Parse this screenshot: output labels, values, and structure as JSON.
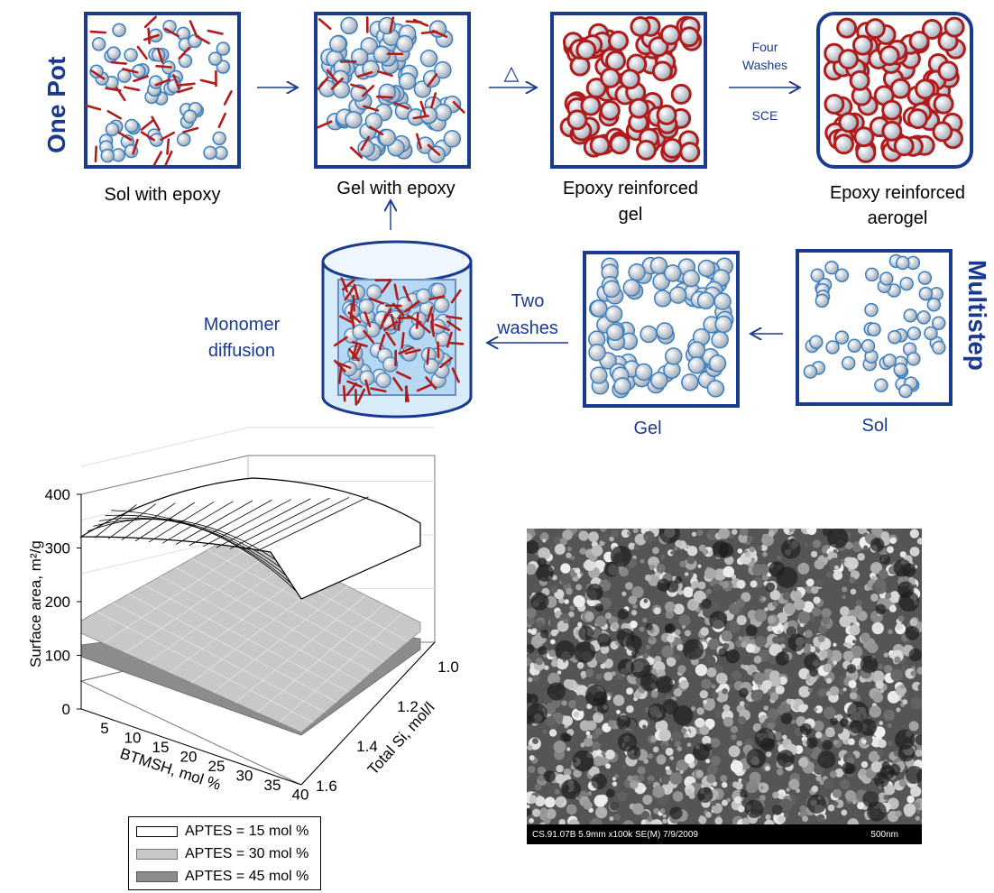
{
  "diagram": {
    "one_pot_label": "One Pot",
    "multistep_label": "Multistep",
    "sol_with_epoxy": "Sol with epoxy",
    "gel_with_epoxy": "Gel with epoxy",
    "epoxy_gel_line1": "Epoxy reinforced",
    "epoxy_gel_line2": "gel",
    "epoxy_aerogel_line1": "Epoxy reinforced",
    "epoxy_aerogel_line2": "aerogel",
    "four_line1": "Four",
    "four_line2": "Washes",
    "sce": "SCE",
    "heat_symbol": "△",
    "two_line1": "Two",
    "two_line2": "washes",
    "monomer_line1": "Monomer",
    "monomer_line2": "diffusion",
    "gel": "Gel",
    "sol": "Sol"
  },
  "colors": {
    "frame_blue": "#1a3a8f",
    "epoxy_red": "#b01c1c",
    "particle_blue": "#3a7fc0"
  },
  "chart_data": {
    "type": "surface",
    "zlabel": "Surface area, m²/g",
    "xlabel": "BTMSH, mol %",
    "ylabel": "Total Si, mol/l",
    "z_ticks": [
      "0",
      "100",
      "200",
      "300",
      "400"
    ],
    "x_ticks": [
      "5",
      "10",
      "15",
      "20",
      "25",
      "30",
      "35",
      "40"
    ],
    "y_ticks": [
      "1.0",
      "1.2",
      "1.4",
      "1.6"
    ],
    "zlim": [
      0,
      400
    ],
    "xlim": [
      5,
      40
    ],
    "ylim": [
      1.0,
      1.6
    ],
    "series": [
      {
        "name": "APTES = 15 mol %",
        "style": "wireframe",
        "color": "#ffffff"
      },
      {
        "name": "APTES = 30 mol %",
        "style": "surface",
        "color": "#c8c8c8"
      },
      {
        "name": "APTES = 45 mol %",
        "style": "surface",
        "color": "#8c8c8c"
      }
    ]
  },
  "sem": {
    "caption": "CS.91.07B 5.9mm x100k SE(M) 7/9/2009",
    "scale": "500nm"
  }
}
